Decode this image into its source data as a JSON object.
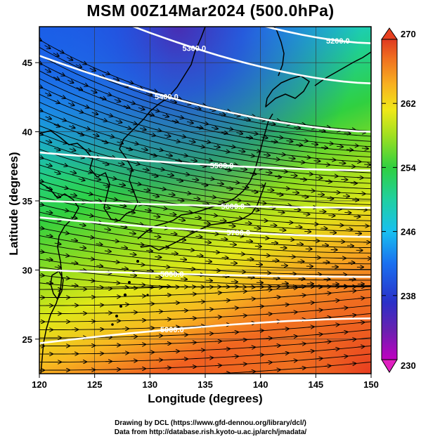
{
  "title": "MSM 00Z14Mar2024 (500.0hPa)",
  "xlabel": "Longitude (degrees)",
  "ylabel": "Latitude  (degrees)",
  "credits": [
    "Drawing by DCL (https://www.gfd-dennou.org/library/dcl/)",
    "Data from http://database.rish.kyoto-u.ac.jp/arch/jmadata/"
  ],
  "map": {
    "x_ticks": [
      120,
      125,
      130,
      135,
      140,
      145,
      150
    ],
    "y_ticks": [
      25,
      30,
      35,
      40,
      45
    ],
    "xlim": [
      120,
      150
    ],
    "ylim": [
      22.5,
      47.6
    ],
    "colorbar": {
      "min": 230,
      "max": 270,
      "tick_labels": [
        "270",
        "262",
        "254",
        "246",
        "238",
        "230"
      ],
      "stops": [
        "#c000c0",
        "#5a2aa8",
        "#2a3ad0",
        "#1a78f0",
        "#18c8f0",
        "#20d0a0",
        "#30d040",
        "#98e020",
        "#e8e818",
        "#f8c020",
        "#f88a20",
        "#e84020"
      ]
    },
    "contours": [
      {
        "label": "5200.0",
        "lat_west": 54,
        "lat_east": 46.4,
        "label_lon": 147
      },
      {
        "label": "5300.0",
        "lat_west": 50.5,
        "lat_east": 43.5,
        "label_lon": 134
      },
      {
        "label": "5400.0",
        "lat_west": 45.5,
        "lat_east": 40,
        "label_lon": 131.5
      },
      {
        "label": "5500.0",
        "lat_west": 38.5,
        "lat_east": 37.2,
        "label_lon": 136.5
      },
      {
        "label": "5600.0",
        "lat_west": 35,
        "lat_east": 34.5,
        "label_lon": 137.5
      },
      {
        "label": "5700.0",
        "lat_west": 33.8,
        "lat_east": 32.4,
        "label_lon": 138
      },
      {
        "label": "5800.0",
        "lat_west": 30,
        "lat_east": 29.5,
        "label_lon": 132
      },
      {
        "label": "5900.0",
        "lat_west": 24.7,
        "lat_east": 26.5,
        "label_lon": 132
      }
    ]
  }
}
